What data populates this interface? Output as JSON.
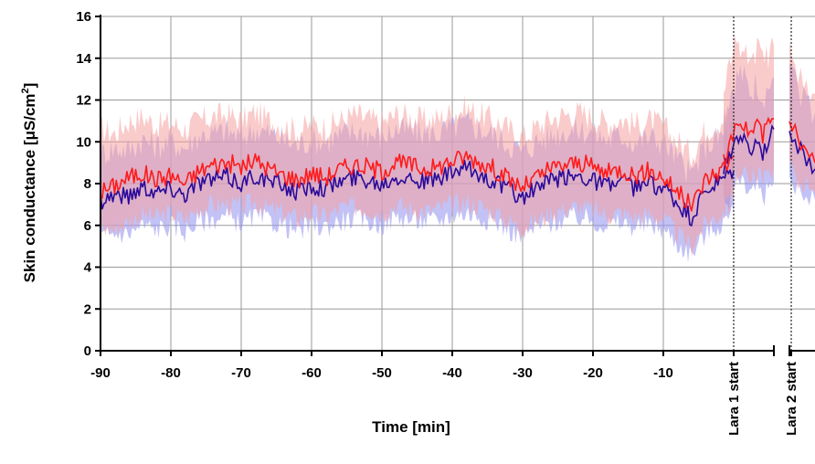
{
  "chart_data": {
    "type": "line",
    "xlabel": "Time [min]",
    "ylabel_main": "Skin conductance [μS/cm",
    "ylabel_sup": "2",
    "ylabel_close": "]",
    "xlim": [
      -90,
      0
    ],
    "ylim": [
      0,
      16
    ],
    "y_ticks": [
      "0",
      "2",
      "4",
      "6",
      "8",
      "10",
      "12",
      "14",
      "16"
    ],
    "x_ticks": [
      "-90",
      "-80",
      "-70",
      "-60",
      "-50",
      "-40",
      "-30",
      "-20",
      "-10"
    ],
    "grid": true,
    "events": [
      "Lara 1 start",
      "Lara 2 start"
    ],
    "series": [
      {
        "color": "#ff1a1a",
        "band_color": "#f5a0a0",
        "x": [
          -90,
          -88,
          -86,
          -84,
          -82,
          -80,
          -78,
          -76,
          -74,
          -72,
          -70,
          -68,
          -66,
          -64,
          -62,
          -60,
          -58,
          -56,
          -54,
          -52,
          -50,
          -48,
          -46,
          -44,
          -42,
          -40,
          -38,
          -36,
          -34,
          -32,
          -30,
          -28,
          -26,
          -24,
          -22,
          -20,
          -18,
          -16,
          -14,
          -12,
          -10,
          -8,
          -6,
          -4,
          -2,
          0
        ],
        "values": [
          7.6,
          7.9,
          8.3,
          8.5,
          8.2,
          8.4,
          8.0,
          8.6,
          8.9,
          9.0,
          8.8,
          9.1,
          8.7,
          8.4,
          8.2,
          8.5,
          8.3,
          8.7,
          8.9,
          8.8,
          8.6,
          9.0,
          8.9,
          8.7,
          8.8,
          9.1,
          9.3,
          9.0,
          8.7,
          8.2,
          7.8,
          8.3,
          8.7,
          8.9,
          9.0,
          8.8,
          8.5,
          8.7,
          8.4,
          8.6,
          8.3,
          7.6,
          6.9,
          8.2,
          8.6,
          9.3
        ],
        "lower": [
          5.9,
          5.8,
          6.2,
          6.5,
          6.4,
          6.6,
          6.3,
          6.8,
          7.0,
          7.0,
          6.9,
          7.1,
          6.8,
          6.6,
          6.3,
          6.6,
          6.4,
          6.8,
          6.9,
          6.8,
          6.6,
          7.0,
          6.8,
          6.7,
          6.8,
          7.0,
          7.1,
          6.9,
          6.6,
          6.2,
          5.9,
          6.2,
          6.6,
          6.8,
          6.9,
          6.7,
          6.5,
          6.6,
          6.4,
          6.5,
          6.3,
          5.6,
          5.0,
          6.1,
          6.5,
          7.2
        ],
        "upper": [
          10.6,
          10.4,
          11.0,
          11.2,
          10.8,
          10.9,
          10.6,
          11.0,
          11.2,
          11.3,
          11.0,
          11.4,
          11.0,
          10.8,
          10.5,
          10.8,
          10.7,
          11.0,
          11.3,
          11.1,
          10.9,
          11.3,
          11.2,
          11.0,
          11.1,
          11.4,
          11.6,
          11.3,
          11.0,
          10.6,
          10.2,
          10.7,
          11.1,
          11.3,
          11.4,
          11.2,
          10.9,
          11.1,
          10.8,
          11.0,
          10.7,
          10.0,
          9.4,
          10.6,
          11.0,
          11.6
        ]
      },
      {
        "color": "#2a0a9a",
        "band_color": "#9a9af0",
        "x": [
          -90,
          -88,
          -86,
          -84,
          -82,
          -80,
          -78,
          -76,
          -74,
          -72,
          -70,
          -68,
          -66,
          -64,
          -62,
          -60,
          -58,
          -56,
          -54,
          -52,
          -50,
          -48,
          -46,
          -44,
          -42,
          -40,
          -38,
          -36,
          -34,
          -32,
          -30,
          -28,
          -26,
          -24,
          -22,
          -20,
          -18,
          -16,
          -14,
          -12,
          -10,
          -8,
          -6,
          -4,
          -2,
          0
        ],
        "values": [
          7.2,
          7.5,
          7.4,
          7.9,
          7.6,
          7.8,
          7.5,
          8.1,
          8.2,
          8.3,
          8.0,
          8.4,
          8.1,
          7.9,
          7.6,
          7.9,
          7.8,
          8.1,
          8.3,
          8.2,
          8.0,
          8.4,
          8.3,
          8.1,
          8.2,
          8.5,
          8.7,
          8.4,
          8.1,
          7.7,
          7.3,
          7.8,
          8.1,
          8.3,
          8.4,
          8.2,
          7.9,
          8.1,
          7.8,
          8.0,
          7.8,
          7.0,
          6.3,
          7.6,
          8.0,
          8.6
        ],
        "lower": [
          5.4,
          5.6,
          5.6,
          6.0,
          5.8,
          6.0,
          5.7,
          6.2,
          6.3,
          6.4,
          6.1,
          6.4,
          6.2,
          6.0,
          5.7,
          6.0,
          5.9,
          6.2,
          6.3,
          6.2,
          6.0,
          6.4,
          6.3,
          6.2,
          6.2,
          6.5,
          6.6,
          6.4,
          6.2,
          5.8,
          5.4,
          5.9,
          6.1,
          6.3,
          6.4,
          6.2,
          6.0,
          6.1,
          5.9,
          6.0,
          5.8,
          5.1,
          4.6,
          5.6,
          6.0,
          6.6
        ],
        "upper": [
          9.4,
          9.7,
          9.6,
          10.1,
          9.8,
          10.0,
          9.7,
          10.3,
          10.4,
          10.5,
          10.2,
          10.6,
          10.4,
          10.1,
          9.8,
          10.1,
          10.0,
          10.3,
          10.5,
          10.4,
          10.2,
          10.6,
          10.5,
          10.4,
          10.4,
          10.7,
          10.9,
          10.6,
          10.3,
          9.9,
          9.5,
          10.0,
          10.3,
          10.5,
          10.6,
          10.4,
          10.1,
          10.3,
          10.0,
          10.2,
          10.0,
          9.2,
          8.4,
          9.8,
          10.2,
          10.8
        ]
      }
    ],
    "event_segments": [
      {
        "event": "Lara 1 start",
        "red_values": [
          9.0,
          9.6,
          10.8,
          11.2,
          10.6,
          10.4,
          11.0,
          10.2,
          10.9,
          11.1
        ],
        "red_lower": [
          7.6,
          7.9,
          8.6,
          8.8,
          8.4,
          8.3,
          8.7,
          8.2,
          8.6,
          8.8
        ],
        "red_upper": [
          12.4,
          13.6,
          14.6,
          14.8,
          14.2,
          13.9,
          14.5,
          13.8,
          14.1,
          14.6
        ],
        "blue_values": [
          8.7,
          9.1,
          10.1,
          10.4,
          9.9,
          9.6,
          10.2,
          9.5,
          10.1,
          10.6
        ],
        "blue_lower": [
          6.9,
          7.2,
          7.8,
          8.0,
          7.6,
          7.4,
          7.7,
          7.3,
          7.7,
          8.1
        ],
        "blue_upper": [
          11.2,
          12.2,
          12.9,
          13.3,
          12.8,
          12.4,
          12.9,
          12.2,
          12.6,
          13.1
        ]
      },
      {
        "event": "Lara 2 start",
        "red_values": [
          11.2,
          10.1,
          9.4,
          9.0
        ],
        "red_lower": [
          8.8,
          8.2,
          7.8,
          7.6
        ],
        "red_upper": [
          14.2,
          13.4,
          12.8,
          12.3
        ],
        "blue_values": [
          10.6,
          9.8,
          9.1,
          8.7
        ],
        "blue_lower": [
          8.2,
          7.9,
          7.4,
          7.2
        ],
        "blue_upper": [
          13.1,
          12.5,
          11.9,
          11.4
        ]
      }
    ]
  }
}
